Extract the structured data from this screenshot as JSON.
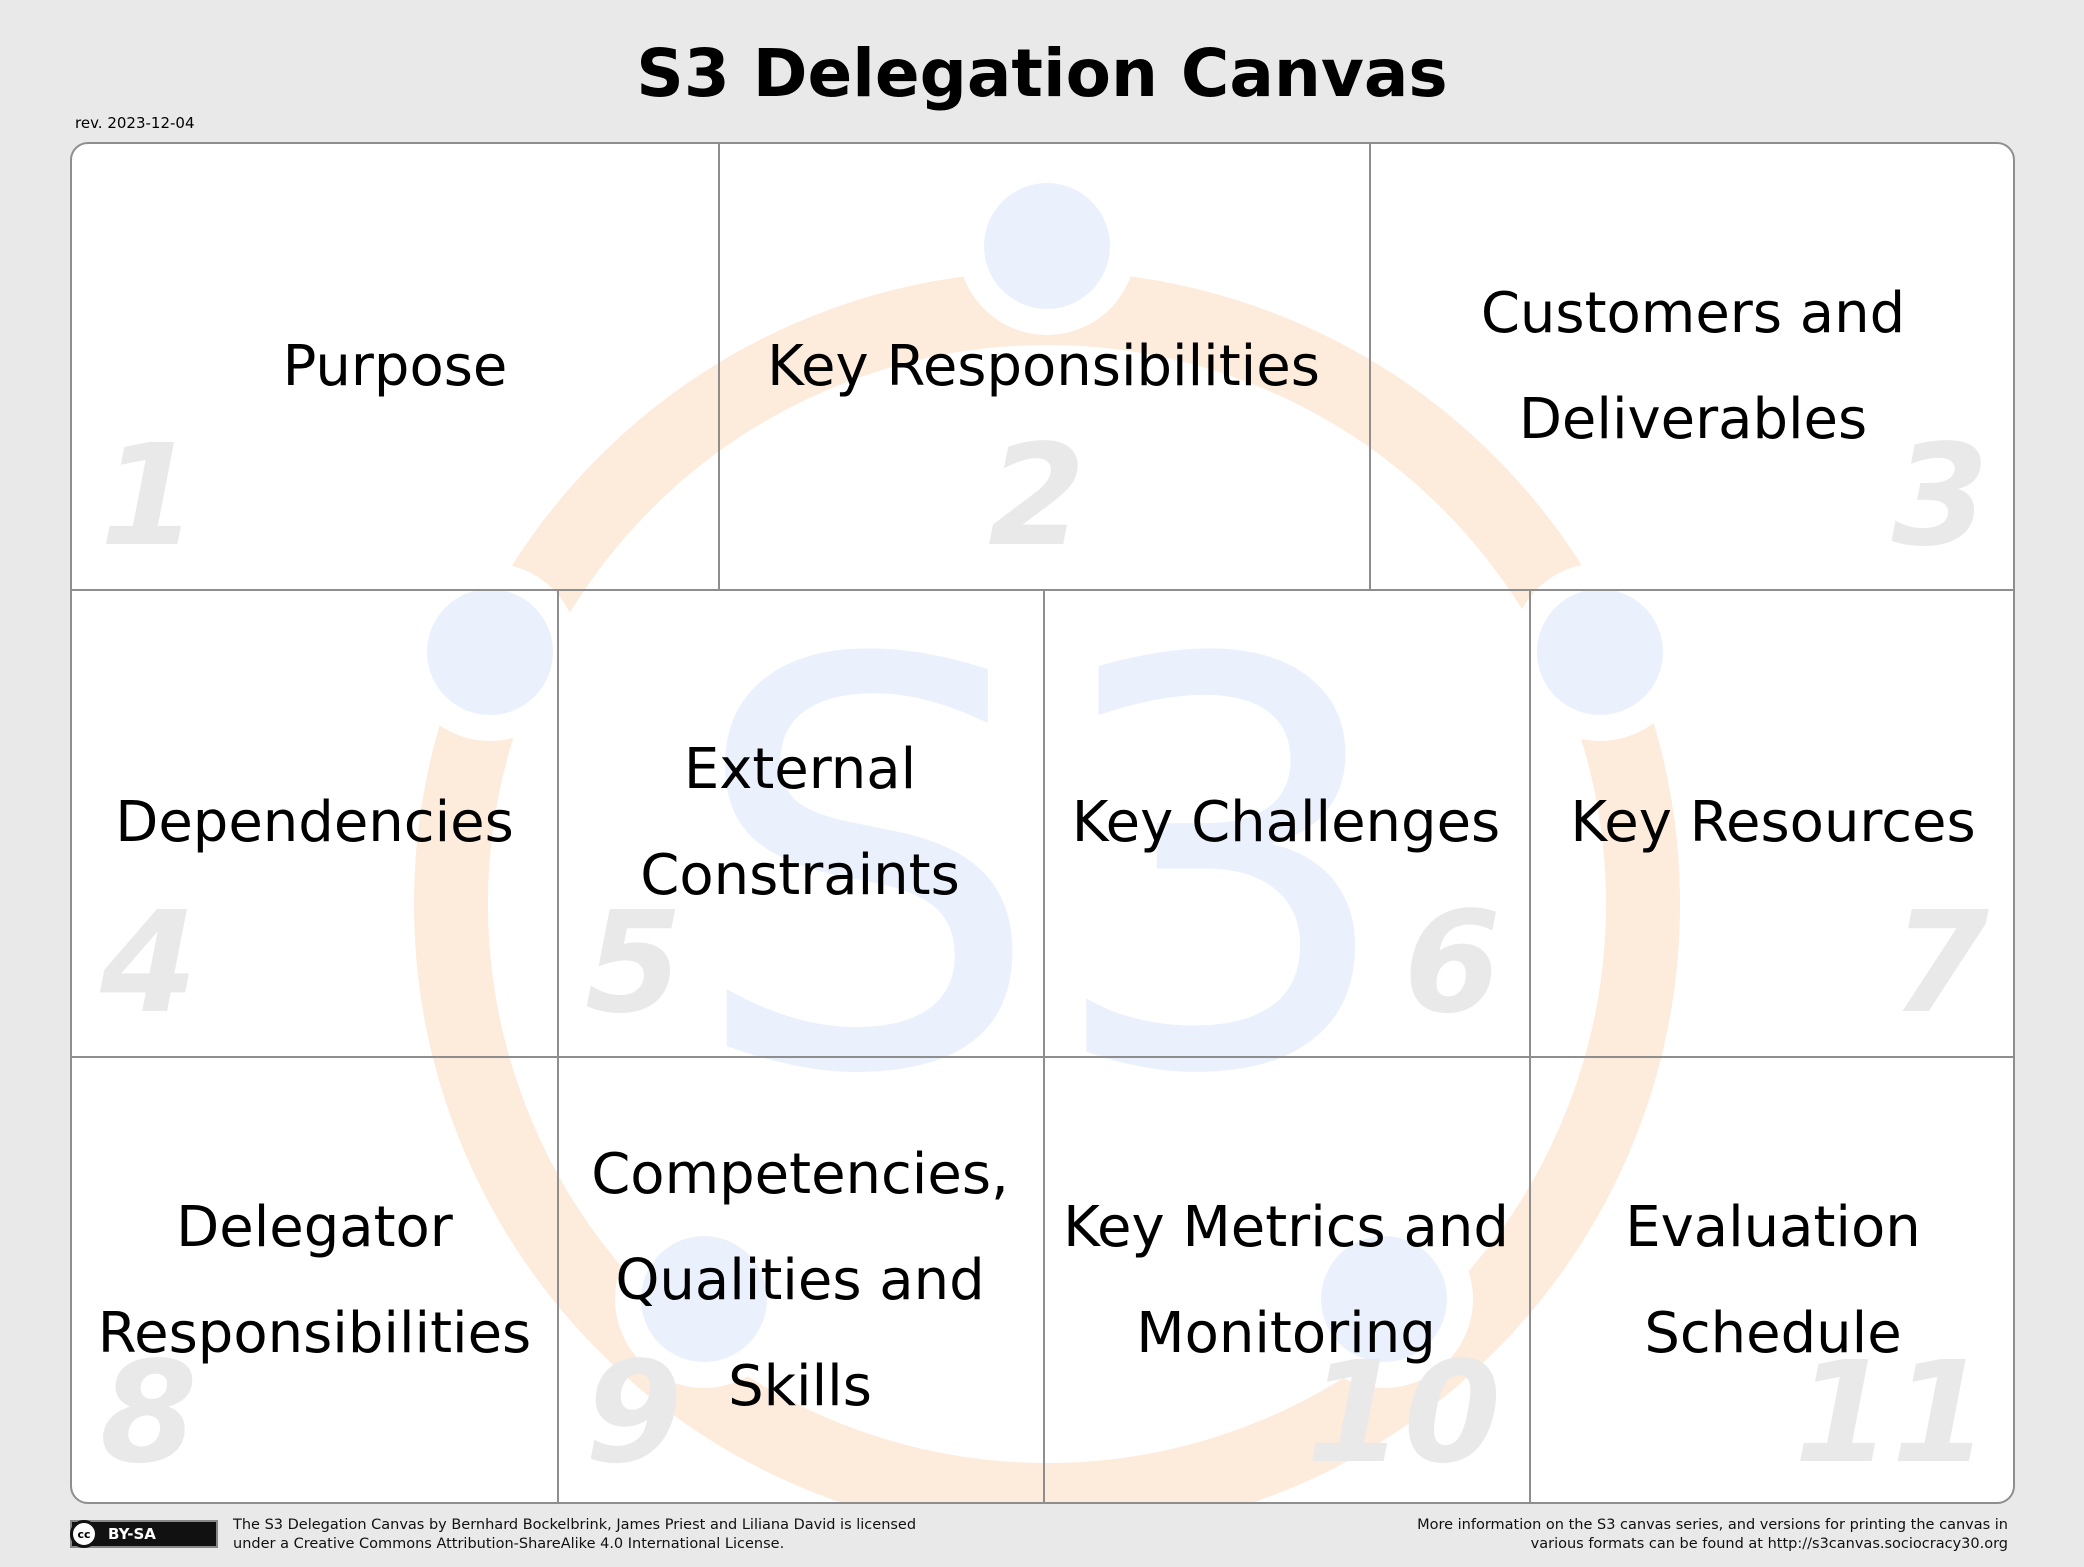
{
  "title": "S3 Delegation Canvas",
  "revision": "rev. 2023-12-04",
  "colors": {
    "watermark_orange": "#fdebdc",
    "watermark_blue": "#ebf1fc",
    "number_gray": "#e9e9e9",
    "grid_line": "#8e8e8e"
  },
  "watermark_text": "S3",
  "cells": [
    {
      "number": "1",
      "label": "Purpose"
    },
    {
      "number": "2",
      "label": "Key Responsibilities"
    },
    {
      "number": "3",
      "label": "Customers and Deliverables"
    },
    {
      "number": "4",
      "label": "Dependencies"
    },
    {
      "number": "5",
      "label": "External Constraints"
    },
    {
      "number": "6",
      "label": "Key Challenges"
    },
    {
      "number": "7",
      "label": "Key Resources"
    },
    {
      "number": "8",
      "label": "Delegator Responsibilities"
    },
    {
      "number": "9",
      "label": "Competencies, Qualities and Skills"
    },
    {
      "number": "10",
      "label": "Key Metrics and Monitoring"
    },
    {
      "number": "11",
      "label": "Evaluation Schedule"
    }
  ],
  "license": {
    "badge_icon": "cc",
    "badge_text": "BY-SA",
    "line1": "The S3 Delegation Canvas by Bernhard Bockelbrink, James Priest and Liliana David is licensed",
    "line2": "under a Creative Commons Attribution-ShareAlike 4.0 International License."
  },
  "more_info": {
    "line1": "More information on the S3 canvas series, and versions for printing the canvas in",
    "line2": "various formats can be found at http://s3canvas.sociocracy30.org"
  }
}
